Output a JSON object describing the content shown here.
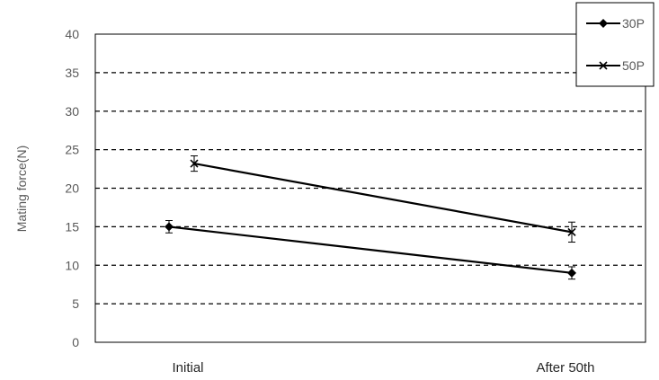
{
  "chart_data": {
    "type": "line",
    "categories": [
      "Initial",
      "After 50th"
    ],
    "ylabel": "Mating force(N)",
    "xlabel": "",
    "ylim": [
      0,
      40
    ],
    "yticks": [
      0,
      5,
      10,
      15,
      20,
      25,
      30,
      35,
      40
    ],
    "grid": true,
    "legend_position": "top-right",
    "series": [
      {
        "name": "30P",
        "marker": "diamond",
        "values": [
          15.0,
          9.0
        ],
        "error": [
          0.8,
          0.8
        ]
      },
      {
        "name": "50P",
        "marker": "x",
        "values": [
          23.2,
          14.3
        ],
        "error": [
          1.0,
          1.3
        ]
      }
    ],
    "colors": {
      "line": "#000000",
      "grid": "#000000",
      "text": "#595959"
    }
  }
}
